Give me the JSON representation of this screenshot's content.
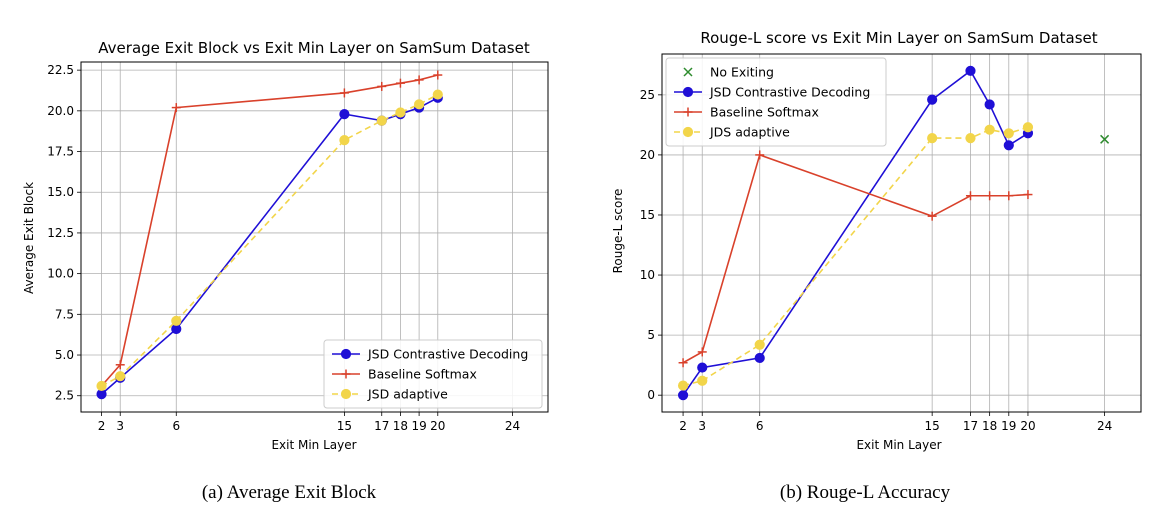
{
  "chart_data": [
    {
      "type": "line",
      "title": "Average Exit Block vs Exit Min Layer on SamSum Dataset",
      "xlabel": "Exit Min Layer",
      "ylabel": "Average Exit Block",
      "caption": "(a) Average Exit Block",
      "xlim": [
        0.9,
        25.9
      ],
      "ylim": [
        1.5,
        23.0
      ],
      "xticks": [
        2,
        3,
        6,
        15,
        17,
        18,
        19,
        20,
        24
      ],
      "xtick_labels": [
        "2",
        "3",
        "6",
        "15",
        "17",
        "18",
        "19",
        "20",
        "24"
      ],
      "yticks": [
        2.5,
        5.0,
        7.5,
        10.0,
        12.5,
        15.0,
        17.5,
        20.0,
        22.5
      ],
      "ytick_labels": [
        "2.5",
        "5.0",
        "7.5",
        "10.0",
        "12.5",
        "15.0",
        "17.5",
        "20.0",
        "22.5"
      ],
      "grid": true,
      "legend_position": "lower-right",
      "series": [
        {
          "name": "JSD Contrastive Decoding",
          "color": "#1f0fd6",
          "marker": "circle",
          "dash": "solid",
          "x": [
            2,
            3,
            6,
            15,
            17,
            18,
            19,
            20
          ],
          "y": [
            2.6,
            3.6,
            6.6,
            19.8,
            19.4,
            19.8,
            20.2,
            20.8
          ]
        },
        {
          "name": "Baseline Softmax",
          "color": "#d9412b",
          "marker": "plus",
          "dash": "solid",
          "x": [
            2,
            3,
            6,
            15,
            17,
            18,
            19,
            20
          ],
          "y": [
            3.1,
            4.4,
            20.2,
            21.1,
            21.5,
            21.7,
            21.9,
            22.2
          ]
        },
        {
          "name": "JSD adaptive",
          "color": "#f2d54a",
          "marker": "circle",
          "dash": "dashed",
          "x": [
            2,
            3,
            6,
            15,
            17,
            18,
            19,
            20
          ],
          "y": [
            3.1,
            3.7,
            7.1,
            18.2,
            19.4,
            19.9,
            20.4,
            21.0
          ]
        }
      ]
    },
    {
      "type": "line",
      "title": "Rouge-L score vs Exit Min Layer on SamSum Dataset",
      "xlabel": "Exit Min Layer",
      "ylabel": "Rouge-L score",
      "caption": "(b) Rouge-L Accuracy",
      "xlim": [
        0.9,
        25.9
      ],
      "ylim": [
        -1.4,
        28.4
      ],
      "xticks": [
        2,
        3,
        6,
        15,
        17,
        18,
        19,
        20,
        24
      ],
      "xtick_labels": [
        "2",
        "3",
        "6",
        "15",
        "17",
        "18",
        "19",
        "20",
        "24"
      ],
      "yticks": [
        0,
        5,
        10,
        15,
        20,
        25
      ],
      "ytick_labels": [
        "0",
        "5",
        "10",
        "15",
        "20",
        "25"
      ],
      "grid": true,
      "legend_position": "upper-left",
      "series": [
        {
          "name": "No Exiting",
          "color": "#2e8b2e",
          "marker": "x",
          "dash": "none",
          "x": [
            24
          ],
          "y": [
            21.3
          ]
        },
        {
          "name": "JSD Contrastive Decoding",
          "color": "#1f0fd6",
          "marker": "circle",
          "dash": "solid",
          "x": [
            2,
            3,
            6,
            15,
            17,
            18,
            19,
            20
          ],
          "y": [
            0.0,
            2.3,
            3.1,
            24.6,
            27.0,
            24.2,
            20.8,
            21.8
          ]
        },
        {
          "name": "Baseline Softmax",
          "color": "#d9412b",
          "marker": "plus",
          "dash": "solid",
          "x": [
            2,
            3,
            6,
            15,
            17,
            18,
            19,
            20
          ],
          "y": [
            2.7,
            3.6,
            20.0,
            14.9,
            16.6,
            16.6,
            16.6,
            16.7
          ]
        },
        {
          "name": "JDS adaptive",
          "color": "#f2d54a",
          "marker": "circle",
          "dash": "dashed",
          "x": [
            2,
            3,
            6,
            15,
            17,
            18,
            19,
            20
          ],
          "y": [
            0.8,
            1.2,
            4.2,
            21.4,
            21.4,
            22.1,
            21.8,
            22.3
          ]
        }
      ]
    }
  ]
}
